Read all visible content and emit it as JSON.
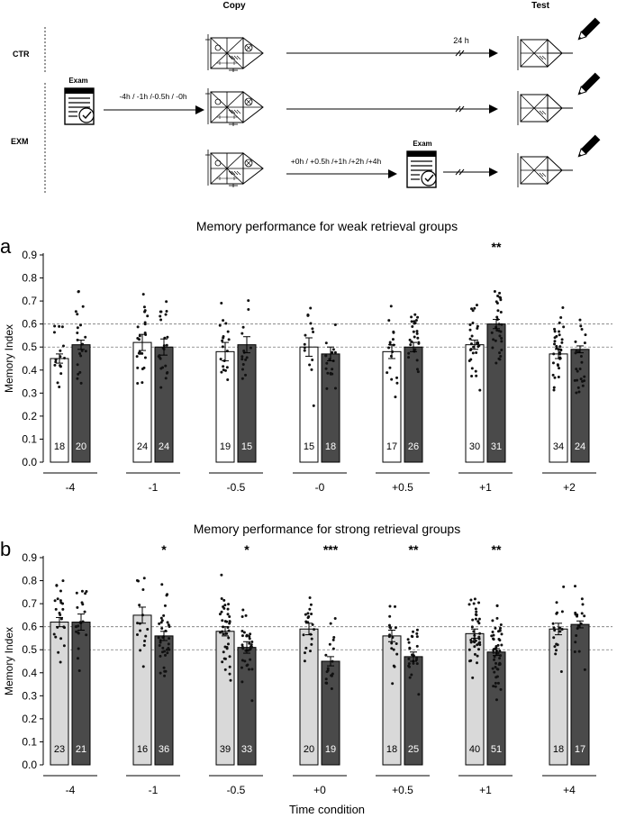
{
  "schematic": {
    "headers": {
      "copy": "Copy",
      "test": "Test"
    },
    "groups": {
      "ctr": "CTR",
      "exm": "EXM"
    },
    "exam_label": "Exam",
    "ctr_delay": "24 h",
    "pre_exam_times": "-4h / -1h /-0.5h / -0h",
    "post_exam_times": "+0h / +0.5h /+1h /+2h /+4h",
    "icons": [
      "exam-sheet-icon",
      "complex-figure-icon",
      "pencil-icon",
      "axis-break-icon"
    ]
  },
  "xlabel_shared": "Time condition",
  "colors": {
    "ctr_weak": "#ffffff",
    "ctr_strong": "#d9d9d9",
    "exm": "#4a4a4a",
    "refline": "#777777"
  },
  "chart_data": [
    {
      "panel": "a",
      "type": "bar",
      "title": "Memory performance for weak retrieval groups",
      "ylabel": "Memory Index",
      "ylim": [
        0,
        0.9
      ],
      "yticks": [
        "0.0",
        "0.1",
        "0.2",
        "0.3",
        "0.4",
        "0.5",
        "0.6",
        "0.7",
        "0.8",
        "0.9"
      ],
      "reference_lines": [
        0.5,
        0.6
      ],
      "categories": [
        "-4",
        "-1",
        "-0.5",
        "-0",
        "+0.5",
        "+1",
        "+2"
      ],
      "series": [
        {
          "name": "CTR",
          "values": [
            0.45,
            0.52,
            0.48,
            0.5,
            0.48,
            0.51,
            0.47
          ],
          "sem": [
            0.02,
            0.035,
            0.04,
            0.04,
            0.03,
            0.02,
            0.02
          ],
          "n": [
            "18",
            "24",
            "19",
            "15",
            "17",
            "30",
            "34"
          ]
        },
        {
          "name": "EXM",
          "values": [
            0.51,
            0.5,
            0.51,
            0.47,
            0.5,
            0.6,
            0.49
          ],
          "sem": [
            0.02,
            0.035,
            0.035,
            0.03,
            0.02,
            0.02,
            0.015
          ],
          "n": [
            "20",
            "24",
            "15",
            "18",
            "26",
            "31",
            "24"
          ]
        }
      ],
      "significance": [
        "",
        "",
        "",
        "",
        "",
        "**",
        ""
      ]
    },
    {
      "panel": "b",
      "type": "bar",
      "title": "Memory performance for strong retrieval groups",
      "ylabel": "Memory Index",
      "xlabel": "Time condition",
      "ylim": [
        0,
        0.9
      ],
      "yticks": [
        "0.0",
        "0.1",
        "0.2",
        "0.3",
        "0.4",
        "0.5",
        "0.6",
        "0.7",
        "0.8",
        "0.9"
      ],
      "reference_lines": [
        0.5,
        0.6
      ],
      "categories": [
        "-4",
        "-1",
        "-0.5",
        "+0",
        "+0.5",
        "+1",
        "+4"
      ],
      "series": [
        {
          "name": "CTR",
          "values": [
            0.62,
            0.65,
            0.58,
            0.59,
            0.56,
            0.57,
            0.59
          ],
          "sem": [
            0.02,
            0.035,
            0.02,
            0.025,
            0.025,
            0.02,
            0.025
          ],
          "n": [
            "23",
            "16",
            "39",
            "20",
            "18",
            "40",
            "18"
          ]
        },
        {
          "name": "EXM",
          "values": [
            0.62,
            0.56,
            0.51,
            0.45,
            0.47,
            0.49,
            0.61
          ],
          "sem": [
            0.035,
            0.02,
            0.025,
            0.02,
            0.02,
            0.015,
            0.015
          ],
          "n": [
            "21",
            "36",
            "33",
            "19",
            "25",
            "51",
            "17"
          ]
        }
      ],
      "significance": [
        "",
        "*",
        "*",
        "***",
        "**",
        "**",
        ""
      ]
    }
  ]
}
